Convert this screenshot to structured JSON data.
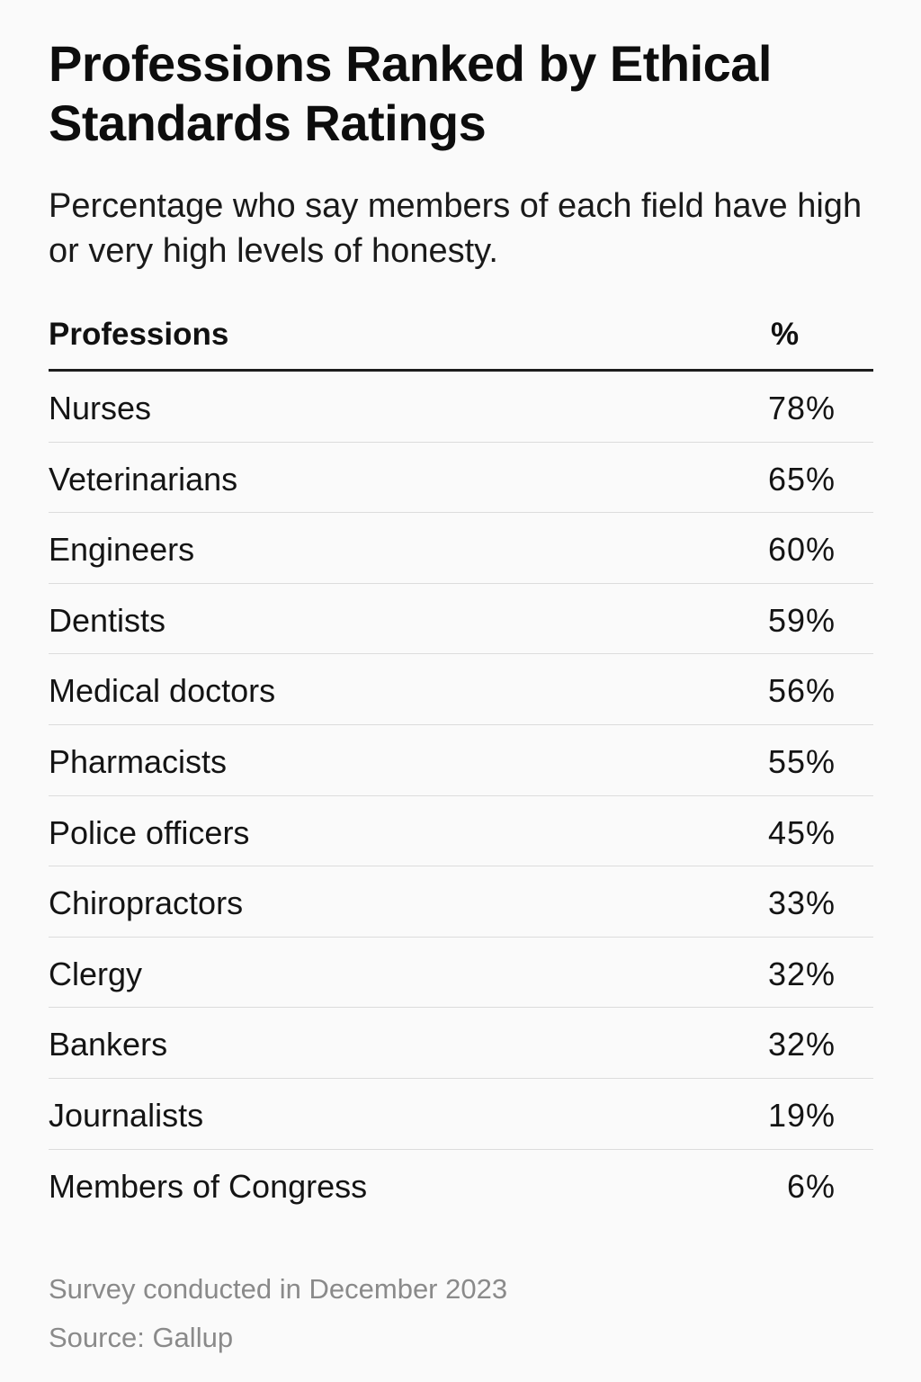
{
  "chart_data": {
    "type": "table",
    "title": "Professions Ranked by Ethical Standards Ratings",
    "subtitle": "Percentage who say members of each field have high or very high levels of honesty.",
    "columns": [
      "Professions",
      "%"
    ],
    "rows": [
      {
        "profession": "Nurses",
        "value": 78,
        "label": "78%"
      },
      {
        "profession": "Veterinarians",
        "value": 65,
        "label": "65%"
      },
      {
        "profession": "Engineers",
        "value": 60,
        "label": "60%"
      },
      {
        "profession": "Dentists",
        "value": 59,
        "label": "59%"
      },
      {
        "profession": "Medical doctors",
        "value": 56,
        "label": "56%"
      },
      {
        "profession": "Pharmacists",
        "value": 55,
        "label": "55%"
      },
      {
        "profession": "Police officers",
        "value": 45,
        "label": "45%"
      },
      {
        "profession": "Chiropractors",
        "value": 33,
        "label": "33%"
      },
      {
        "profession": "Clergy",
        "value": 32,
        "label": "32%"
      },
      {
        "profession": "Bankers",
        "value": 32,
        "label": "32%"
      },
      {
        "profession": "Journalists",
        "value": 19,
        "label": "19%"
      },
      {
        "profession": "Members of Congress",
        "value": 6,
        "label": "6%"
      }
    ]
  },
  "footer": {
    "note": "Survey conducted in December 2023",
    "source": "Source: Gallup"
  }
}
